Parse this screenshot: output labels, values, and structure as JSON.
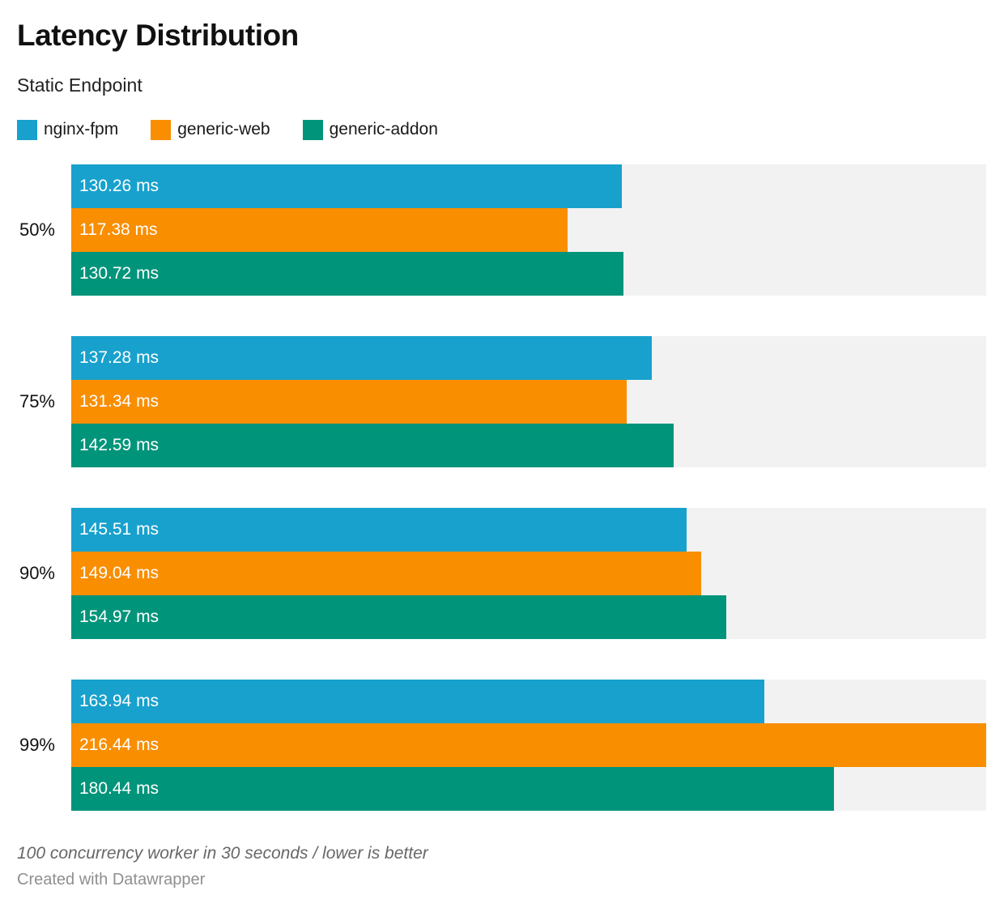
{
  "header": {
    "title": "Latency Distribution",
    "subtitle": "Static Endpoint"
  },
  "legend": {
    "items": [
      {
        "label": "nginx-fpm",
        "color": "#18a1cd"
      },
      {
        "label": "generic-web",
        "color": "#f98e00"
      },
      {
        "label": "generic-addon",
        "color": "#00947a"
      }
    ]
  },
  "chart_data": {
    "type": "bar",
    "orientation": "horizontal",
    "grouped": true,
    "title": "Latency Distribution",
    "subtitle": "Static Endpoint",
    "categories": [
      "50%",
      "75%",
      "90%",
      "99%"
    ],
    "series": [
      {
        "name": "nginx-fpm",
        "color": "#18a1cd",
        "values": [
          130.26,
          137.28,
          145.51,
          163.94
        ],
        "labels": [
          "130.26 ms",
          "137.28 ms",
          "145.51 ms",
          "163.94 ms"
        ]
      },
      {
        "name": "generic-web",
        "color": "#f98e00",
        "values": [
          117.38,
          131.34,
          149.04,
          216.44
        ],
        "labels": [
          "117.38 ms",
          "131.34 ms",
          "149.04 ms",
          "216.44 ms"
        ]
      },
      {
        "name": "generic-addon",
        "color": "#00947a",
        "values": [
          130.72,
          142.59,
          154.97,
          180.44
        ],
        "labels": [
          "130.72 ms",
          "142.59 ms",
          "154.97 ms",
          "180.44 ms"
        ]
      }
    ],
    "unit": "ms",
    "xlim": [
      0,
      216.44
    ],
    "value_labels": "inside-start",
    "track_color": "#f2f2f2",
    "legend_position": "top",
    "grid": false
  },
  "footer": {
    "note": "100 concurrency worker in 30 seconds / lower is better",
    "byline": "Created with Datawrapper"
  }
}
